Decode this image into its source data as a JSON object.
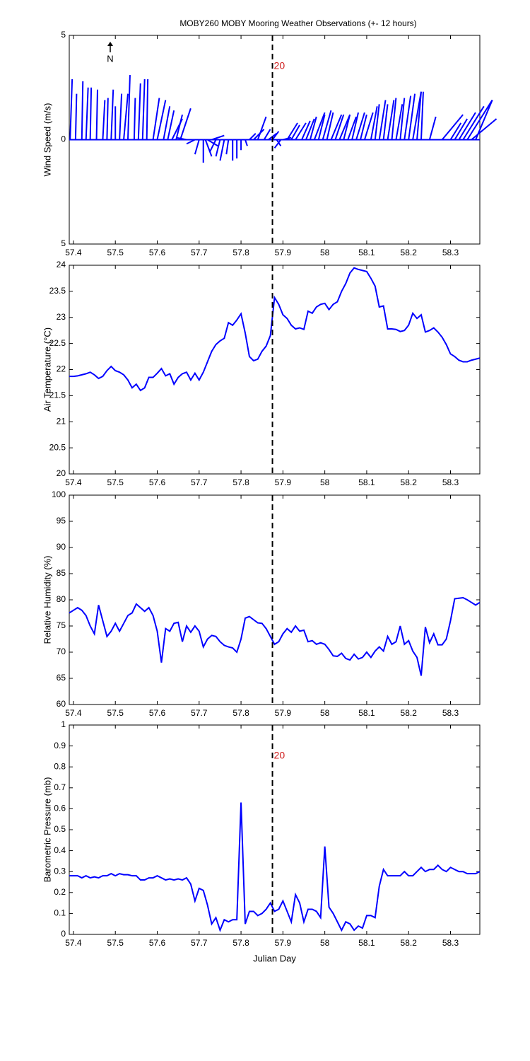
{
  "title": "MOBY260 MOBY Mooring Weather Observations (+- 12 hours)",
  "chart_data": [
    {
      "type": "stick",
      "ylabel": "Wind Speed (m/s)",
      "north_label": "N",
      "color": "#0000ff",
      "xlim": [
        57.39,
        58.37
      ],
      "xticks": [
        57.4,
        57.5,
        57.6,
        57.7,
        57.8,
        57.9,
        58,
        58.1,
        58.2,
        58.3
      ],
      "ylim": [
        -5,
        5
      ],
      "yticks": [
        {
          "value": -5,
          "label": "5"
        },
        0,
        5
      ],
      "vline": 57.875,
      "vline_label": "20",
      "x": [
        57.392,
        57.405,
        57.42,
        57.43,
        57.44,
        57.455,
        57.47,
        57.48,
        57.49,
        57.5,
        57.51,
        57.52,
        57.53,
        57.545,
        57.555,
        57.565,
        57.575,
        57.59,
        57.6,
        57.615,
        57.625,
        57.635,
        57.645,
        57.655,
        57.67,
        57.69,
        57.7,
        57.71,
        57.715,
        57.72,
        57.73,
        57.74,
        57.75,
        57.76,
        57.77,
        57.78,
        57.79,
        57.8,
        57.81,
        57.82,
        57.83,
        57.84,
        57.855,
        57.865,
        57.875,
        57.885,
        57.895,
        57.9,
        57.91,
        57.92,
        57.93,
        57.945,
        57.955,
        57.965,
        57.975,
        57.985,
        57.995,
        58.005,
        58.015,
        58.025,
        58.035,
        58.045,
        58.055,
        58.065,
        58.075,
        58.085,
        58.095,
        58.11,
        58.12,
        58.13,
        58.14,
        58.15,
        58.16,
        58.17,
        58.18,
        58.19,
        58.2,
        58.21,
        58.22,
        58.23,
        58.25,
        58.28,
        58.3,
        58.31,
        58.32,
        58.33,
        58.34,
        58.35,
        58.36
      ],
      "u": [
        0.1,
        0.05,
        0.05,
        0.1,
        0.05,
        0.05,
        0.1,
        0.05,
        0.1,
        0.0,
        0.1,
        0.2,
        0.1,
        0.05,
        0.1,
        0.1,
        0.05,
        0.3,
        0.4,
        0.3,
        0.3,
        0.5,
        0.3,
        0.5,
        -0.5,
        -0.4,
        -0.2,
        0.0,
        0.3,
        0.5,
        0.6,
        -0.3,
        -0.2,
        -0.2,
        -0.1,
        0.0,
        0.0,
        0.0,
        0.1,
        0.3,
        0.5,
        0.4,
        0.3,
        0.4,
        0.3,
        0.2,
        -0.3,
        0.4,
        0.5,
        0.4,
        0.5,
        0.4,
        0.4,
        0.3,
        0.5,
        0.3,
        0.4,
        0.3,
        0.5,
        0.4,
        0.5,
        0.3,
        0.4,
        0.3,
        0.4,
        0.3,
        0.4,
        0.3,
        0.2,
        0.3,
        0.2,
        0.3,
        0.2,
        0.3,
        0.2,
        0.3,
        0.3,
        0.4,
        0.2,
        0.1,
        0.3,
        1.0,
        0.5,
        0.6,
        0.8,
        1.0,
        1.2,
        1.2,
        0.8
      ],
      "v": [
        2.9,
        2.2,
        2.8,
        2.5,
        2.5,
        2.4,
        1.9,
        2.0,
        2.4,
        1.6,
        2.2,
        2.2,
        3.1,
        2.0,
        2.7,
        2.9,
        2.9,
        2.0,
        1.9,
        1.6,
        1.4,
        1.0,
        1.2,
        1.5,
        0.1,
        -0.2,
        -0.7,
        -1.1,
        -0.8,
        -0.3,
        0.2,
        -0.6,
        -0.8,
        -1.0,
        -0.7,
        -1.0,
        -0.9,
        -0.5,
        -0.3,
        0.3,
        0.5,
        1.1,
        0.5,
        0.3,
        0.4,
        -0.3,
        -0.4,
        0.1,
        0.8,
        0.7,
        0.8,
        0.9,
        1.0,
        1.1,
        1.3,
        1.2,
        1.4,
        1.3,
        1.2,
        1.2,
        1.2,
        1.2,
        1.1,
        1.3,
        1.3,
        1.2,
        1.3,
        1.6,
        1.7,
        1.9,
        1.7,
        1.9,
        2.0,
        1.7,
        2.0,
        2.1,
        2.2,
        2.3,
        2.3,
        2.3,
        1.1,
        1.2,
        0.8,
        1.0,
        1.3,
        1.6,
        1.9,
        1.0,
        1.9
      ]
    },
    {
      "type": "line",
      "ylabel": "Air Temperature (°C)",
      "color": "#0000ff",
      "xlim": [
        57.39,
        58.37
      ],
      "xticks": [
        57.4,
        57.5,
        57.6,
        57.7,
        57.8,
        57.9,
        58,
        58.1,
        58.2,
        58.3
      ],
      "ylim": [
        20,
        24
      ],
      "yticks": [
        20,
        20.5,
        21,
        21.5,
        22,
        22.5,
        23,
        23.5,
        24
      ],
      "vline": 57.875,
      "x": [
        57.39,
        57.4,
        57.41,
        57.42,
        57.43,
        57.44,
        57.45,
        57.46,
        57.47,
        57.48,
        57.49,
        57.5,
        57.51,
        57.52,
        57.53,
        57.54,
        57.55,
        57.56,
        57.57,
        57.58,
        57.59,
        57.6,
        57.61,
        57.62,
        57.63,
        57.64,
        57.65,
        57.66,
        57.67,
        57.68,
        57.69,
        57.7,
        57.71,
        57.72,
        57.73,
        57.74,
        57.75,
        57.76,
        57.77,
        57.78,
        57.79,
        57.8,
        57.81,
        57.82,
        57.83,
        57.84,
        57.85,
        57.86,
        57.87,
        57.88,
        57.89,
        57.9,
        57.91,
        57.92,
        57.93,
        57.94,
        57.95,
        57.96,
        57.97,
        57.98,
        57.99,
        58,
        58.01,
        58.02,
        58.03,
        58.04,
        58.05,
        58.06,
        58.07,
        58.08,
        58.09,
        58.1,
        58.11,
        58.12,
        58.13,
        58.14,
        58.15,
        58.16,
        58.17,
        58.18,
        58.19,
        58.2,
        58.21,
        58.22,
        58.23,
        58.24,
        58.25,
        58.26,
        58.27,
        58.28,
        58.29,
        58.3,
        58.31,
        58.32,
        58.33,
        58.34,
        58.35,
        58.36,
        58.37
      ],
      "values": [
        21.87,
        21.87,
        21.88,
        21.9,
        21.92,
        21.95,
        21.9,
        21.83,
        21.87,
        21.98,
        22.06,
        21.98,
        21.95,
        21.9,
        21.8,
        21.65,
        21.72,
        21.6,
        21.65,
        21.85,
        21.85,
        21.93,
        22.02,
        21.88,
        21.92,
        21.72,
        21.85,
        21.92,
        21.95,
        21.8,
        21.93,
        21.8,
        21.95,
        22.15,
        22.35,
        22.48,
        22.55,
        22.6,
        22.9,
        22.85,
        22.95,
        23.07,
        22.7,
        22.25,
        22.17,
        22.2,
        22.35,
        22.45,
        22.65,
        23.38,
        23.25,
        23.05,
        22.98,
        22.85,
        22.78,
        22.8,
        22.77,
        23.12,
        23.08,
        23.2,
        23.25,
        23.27,
        23.15,
        23.25,
        23.3,
        23.5,
        23.65,
        23.85,
        23.95,
        23.92,
        23.9,
        23.88,
        23.75,
        23.6,
        23.2,
        23.22,
        22.78,
        22.78,
        22.77,
        22.73,
        22.75,
        22.85,
        23.08,
        22.98,
        23.05,
        22.72,
        22.75,
        22.8,
        22.72,
        22.62,
        22.48,
        22.3,
        22.25,
        22.18,
        22.15,
        22.15,
        22.18,
        22.2,
        22.22
      ]
    },
    {
      "type": "line",
      "ylabel": "Relative Humidity (%)",
      "color": "#0000ff",
      "xlim": [
        57.39,
        58.37
      ],
      "xticks": [
        57.4,
        57.5,
        57.6,
        57.7,
        57.8,
        57.9,
        58,
        58.1,
        58.2,
        58.3
      ],
      "ylim": [
        60,
        100
      ],
      "yticks": [
        60,
        65,
        70,
        75,
        80,
        85,
        90,
        95,
        100
      ],
      "vline": 57.875,
      "x": [
        57.39,
        57.4,
        57.41,
        57.42,
        57.43,
        57.44,
        57.45,
        57.46,
        57.47,
        57.48,
        57.49,
        57.5,
        57.51,
        57.52,
        57.53,
        57.54,
        57.55,
        57.56,
        57.57,
        57.58,
        57.59,
        57.6,
        57.61,
        57.62,
        57.63,
        57.64,
        57.65,
        57.66,
        57.67,
        57.68,
        57.69,
        57.7,
        57.71,
        57.72,
        57.73,
        57.74,
        57.75,
        57.76,
        57.77,
        57.78,
        57.79,
        57.8,
        57.81,
        57.82,
        57.83,
        57.84,
        57.85,
        57.86,
        57.87,
        57.88,
        57.89,
        57.9,
        57.91,
        57.92,
        57.93,
        57.94,
        57.95,
        57.96,
        57.97,
        57.98,
        57.99,
        58,
        58.01,
        58.02,
        58.03,
        58.04,
        58.05,
        58.06,
        58.07,
        58.08,
        58.09,
        58.1,
        58.11,
        58.12,
        58.13,
        58.14,
        58.15,
        58.16,
        58.17,
        58.18,
        58.19,
        58.2,
        58.21,
        58.22,
        58.23,
        58.24,
        58.25,
        58.26,
        58.27,
        58.28,
        58.29,
        58.3,
        58.31,
        58.32,
        58.33,
        58.34,
        58.35,
        58.36,
        58.37
      ],
      "values": [
        77.5,
        78,
        78.5,
        78,
        77,
        75,
        73.5,
        79,
        76,
        73,
        74,
        75.5,
        74,
        75.5,
        77,
        77.5,
        79.2,
        78.5,
        77.8,
        78.5,
        77,
        74,
        68,
        74.5,
        74,
        75.5,
        75.7,
        72,
        75,
        73.8,
        75,
        74,
        71,
        72.5,
        73.2,
        73,
        72,
        71.3,
        71,
        70.8,
        70,
        72.5,
        76.5,
        76.8,
        76.2,
        75.6,
        75.5,
        74.5,
        73,
        71.5,
        72,
        73.5,
        74.5,
        73.8,
        75,
        74,
        74.2,
        72,
        72.2,
        71.5,
        71.8,
        71.5,
        70.5,
        69.3,
        69.2,
        69.8,
        68.8,
        68.5,
        69.6,
        68.7,
        69,
        70,
        69,
        70.2,
        71,
        70.2,
        73,
        71.5,
        72,
        75,
        71.5,
        72.2,
        70.2,
        69,
        65.5,
        74.8,
        71.8,
        73.5,
        71.4,
        71.4,
        72.5,
        76,
        80.2,
        80.3,
        80.4,
        80,
        79.5,
        79,
        79.5
      ]
    },
    {
      "type": "line",
      "ylabel": "Barometric Pressure (mb)",
      "xlabel": "Julian Day",
      "color": "#0000ff",
      "xlim": [
        57.39,
        58.37
      ],
      "xticks": [
        57.4,
        57.5,
        57.6,
        57.7,
        57.8,
        57.9,
        58,
        58.1,
        58.2,
        58.3
      ],
      "ylim": [
        0,
        1
      ],
      "yticks": [
        0,
        0.1,
        0.2,
        0.3,
        0.4,
        0.5,
        0.6,
        0.7,
        0.8,
        0.9,
        1
      ],
      "vline": 57.875,
      "vline_label": "20",
      "x": [
        57.39,
        57.4,
        57.41,
        57.42,
        57.43,
        57.44,
        57.45,
        57.46,
        57.47,
        57.48,
        57.49,
        57.5,
        57.51,
        57.52,
        57.53,
        57.54,
        57.55,
        57.56,
        57.57,
        57.58,
        57.59,
        57.6,
        57.61,
        57.62,
        57.63,
        57.64,
        57.65,
        57.66,
        57.67,
        57.68,
        57.69,
        57.7,
        57.71,
        57.72,
        57.73,
        57.74,
        57.75,
        57.76,
        57.77,
        57.78,
        57.79,
        57.8,
        57.81,
        57.82,
        57.83,
        57.84,
        57.85,
        57.86,
        57.87,
        57.88,
        57.89,
        57.9,
        57.91,
        57.92,
        57.93,
        57.94,
        57.95,
        57.96,
        57.97,
        57.98,
        57.99,
        58,
        58.01,
        58.02,
        58.03,
        58.04,
        58.05,
        58.06,
        58.07,
        58.08,
        58.09,
        58.1,
        58.11,
        58.12,
        58.13,
        58.14,
        58.15,
        58.16,
        58.17,
        58.18,
        58.19,
        58.2,
        58.21,
        58.22,
        58.23,
        58.24,
        58.25,
        58.26,
        58.27,
        58.28,
        58.29,
        58.3,
        58.31,
        58.32,
        58.33,
        58.34,
        58.35,
        58.36,
        58.37
      ],
      "values": [
        0.28,
        0.28,
        0.28,
        0.27,
        0.28,
        0.27,
        0.275,
        0.27,
        0.28,
        0.28,
        0.29,
        0.28,
        0.29,
        0.285,
        0.285,
        0.28,
        0.28,
        0.26,
        0.26,
        0.27,
        0.27,
        0.28,
        0.27,
        0.26,
        0.265,
        0.26,
        0.265,
        0.26,
        0.27,
        0.24,
        0.16,
        0.22,
        0.21,
        0.14,
        0.05,
        0.08,
        0.02,
        0.07,
        0.06,
        0.07,
        0.07,
        0.63,
        0.05,
        0.11,
        0.11,
        0.09,
        0.1,
        0.12,
        0.15,
        0.11,
        0.12,
        0.16,
        0.11,
        0.06,
        0.19,
        0.15,
        0.06,
        0.12,
        0.12,
        0.11,
        0.08,
        0.42,
        0.13,
        0.1,
        0.06,
        0.02,
        0.06,
        0.05,
        0.02,
        0.04,
        0.03,
        0.09,
        0.09,
        0.08,
        0.23,
        0.31,
        0.28,
        0.28,
        0.28,
        0.28,
        0.3,
        0.28,
        0.28,
        0.3,
        0.32,
        0.3,
        0.31,
        0.31,
        0.33,
        0.31,
        0.3,
        0.32,
        0.31,
        0.3,
        0.3,
        0.29,
        0.29,
        0.29,
        0.3
      ]
    }
  ]
}
